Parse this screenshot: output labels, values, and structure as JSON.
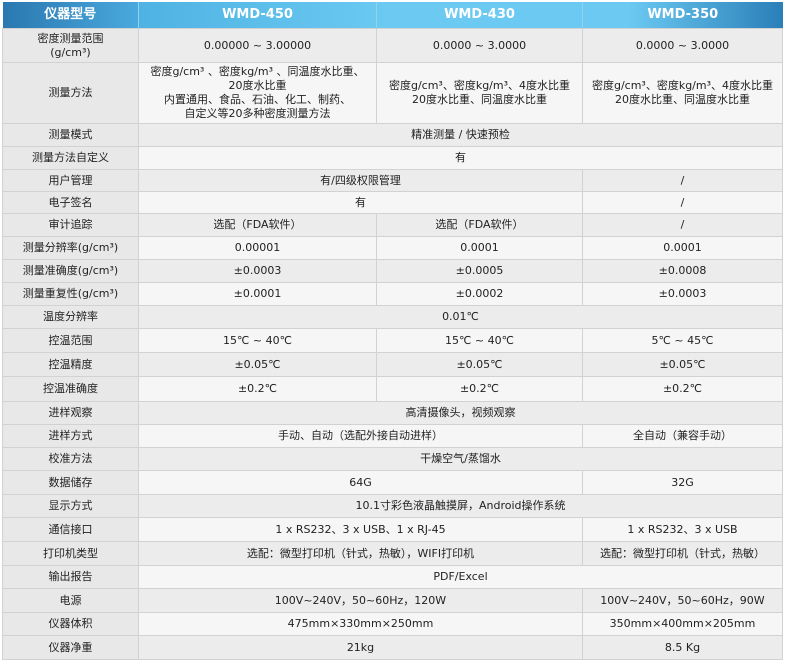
{
  "header": [
    "仪器型号",
    "WMD-450",
    "WMD-430",
    "WMD-350"
  ],
  "colors": {
    "header_dark": "#2a7fb8",
    "header_light": "#6ccaf2",
    "row_gray": "#ececec",
    "row_light": "#f6f6f6"
  },
  "rows": [
    {
      "label": "密度测量范围\n(g/cm³)",
      "cells": [
        {
          "text": "0.00000 ~ 3.00000",
          "span": 1
        },
        {
          "text": "0.0000 ~ 3.0000",
          "span": 1
        },
        {
          "text": "0.0000 ~ 3.0000",
          "span": 1
        }
      ]
    },
    {
      "label": "测量方法",
      "cells": [
        {
          "text": "密度g/cm³ 、密度kg/m³ 、同温度水比重、\n20度水比重\n内置通用、食品、石油、化工、制药、\n自定义等20多种密度测量方法",
          "span": 1
        },
        {
          "text": "密度g/cm³、密度kg/m³、4度水比重\n20度水比重、同温度水比重",
          "span": 1
        },
        {
          "text": "密度g/cm³、密度kg/m³、4度水比重\n20度水比重、同温度水比重",
          "span": 1
        }
      ]
    },
    {
      "label": "测量模式",
      "cells": [
        {
          "text": "精准测量 / 快速预检",
          "span": 3
        }
      ]
    },
    {
      "label": "测量方法自定义",
      "cells": [
        {
          "text": "有",
          "span": 3
        }
      ]
    },
    {
      "label": "用户管理",
      "cells": [
        {
          "text": "有/四级权限管理",
          "span": 2
        },
        {
          "text": "/",
          "span": 1
        }
      ]
    },
    {
      "label": "电子签名",
      "cells": [
        {
          "text": "有",
          "span": 2
        },
        {
          "text": "/",
          "span": 1
        }
      ]
    },
    {
      "label": "审计追踪",
      "cells": [
        {
          "text": "选配（FDA软件）",
          "span": 1
        },
        {
          "text": "选配（FDA软件）",
          "span": 1
        },
        {
          "text": "/",
          "span": 1
        }
      ]
    },
    {
      "label": "测量分辨率(g/cm³)",
      "cells": [
        {
          "text": "0.00001",
          "span": 1
        },
        {
          "text": "0.0001",
          "span": 1
        },
        {
          "text": "0.0001",
          "span": 1
        }
      ]
    },
    {
      "label": "测量准确度(g/cm³)",
      "cells": [
        {
          "text": "±0.0003",
          "span": 1
        },
        {
          "text": "±0.0005",
          "span": 1
        },
        {
          "text": "±0.0008",
          "span": 1
        }
      ]
    },
    {
      "label": "测量重复性(g/cm³)",
      "cells": [
        {
          "text": "±0.0001",
          "span": 1
        },
        {
          "text": "±0.0002",
          "span": 1
        },
        {
          "text": "±0.0003",
          "span": 1
        }
      ]
    },
    {
      "label": "温度分辨率",
      "cells": [
        {
          "text": "0.01℃",
          "span": 3
        }
      ]
    },
    {
      "label": "控温范围",
      "cells": [
        {
          "text": "15℃ ~ 40℃",
          "span": 1
        },
        {
          "text": "15℃ ~ 40℃",
          "span": 1
        },
        {
          "text": "5℃ ~ 45℃",
          "span": 1
        }
      ]
    },
    {
      "label": "控温精度",
      "cells": [
        {
          "text": "±0.05℃",
          "span": 1
        },
        {
          "text": "±0.05℃",
          "span": 1
        },
        {
          "text": "±0.05℃",
          "span": 1
        }
      ]
    },
    {
      "label": "控温准确度",
      "cells": [
        {
          "text": "±0.2℃",
          "span": 1
        },
        {
          "text": "±0.2℃",
          "span": 1
        },
        {
          "text": "±0.2℃",
          "span": 1
        }
      ]
    },
    {
      "label": "进样观察",
      "cells": [
        {
          "text": "高清摄像头，视频观察",
          "span": 3
        }
      ]
    },
    {
      "label": "进样方式",
      "cells": [
        {
          "text": "手动、自动（选配外接自动进样）",
          "span": 2
        },
        {
          "text": "全自动（兼容手动）",
          "span": 1
        }
      ]
    },
    {
      "label": "校准方法",
      "cells": [
        {
          "text": "干燥空气/蒸馏水",
          "span": 3
        }
      ]
    },
    {
      "label": "数据储存",
      "cells": [
        {
          "text": "64G",
          "span": 2
        },
        {
          "text": "32G",
          "span": 1
        }
      ]
    },
    {
      "label": "显示方式",
      "cells": [
        {
          "text": "10.1寸彩色液晶触摸屏，Android操作系统",
          "span": 3
        }
      ]
    },
    {
      "label": "通信接口",
      "cells": [
        {
          "text": "1 x RS232、3 x USB、1 x RJ-45",
          "span": 2
        },
        {
          "text": "1 x RS232、3 x USB",
          "span": 1
        }
      ]
    },
    {
      "label": "打印机类型",
      "cells": [
        {
          "text": "选配：微型打印机（针式，热敏），WIFI打印机",
          "span": 2
        },
        {
          "text": "选配：微型打印机（针式，热敏）",
          "span": 1
        }
      ]
    },
    {
      "label": "输出报告",
      "cells": [
        {
          "text": "PDF/Excel",
          "span": 3
        }
      ]
    },
    {
      "label": "电源",
      "cells": [
        {
          "text": "100V~240V，50~60Hz，120W",
          "span": 2
        },
        {
          "text": "100V~240V，50~60Hz，90W",
          "span": 1
        }
      ]
    },
    {
      "label": "仪器体积",
      "cells": [
        {
          "text": "475mm×330mm×250mm",
          "span": 2
        },
        {
          "text": "350mm×400mm×205mm",
          "span": 1
        }
      ]
    },
    {
      "label": "仪器净重",
      "cells": [
        {
          "text": "21kg",
          "span": 2
        },
        {
          "text": "8.5 Kg",
          "span": 1
        }
      ]
    }
  ]
}
